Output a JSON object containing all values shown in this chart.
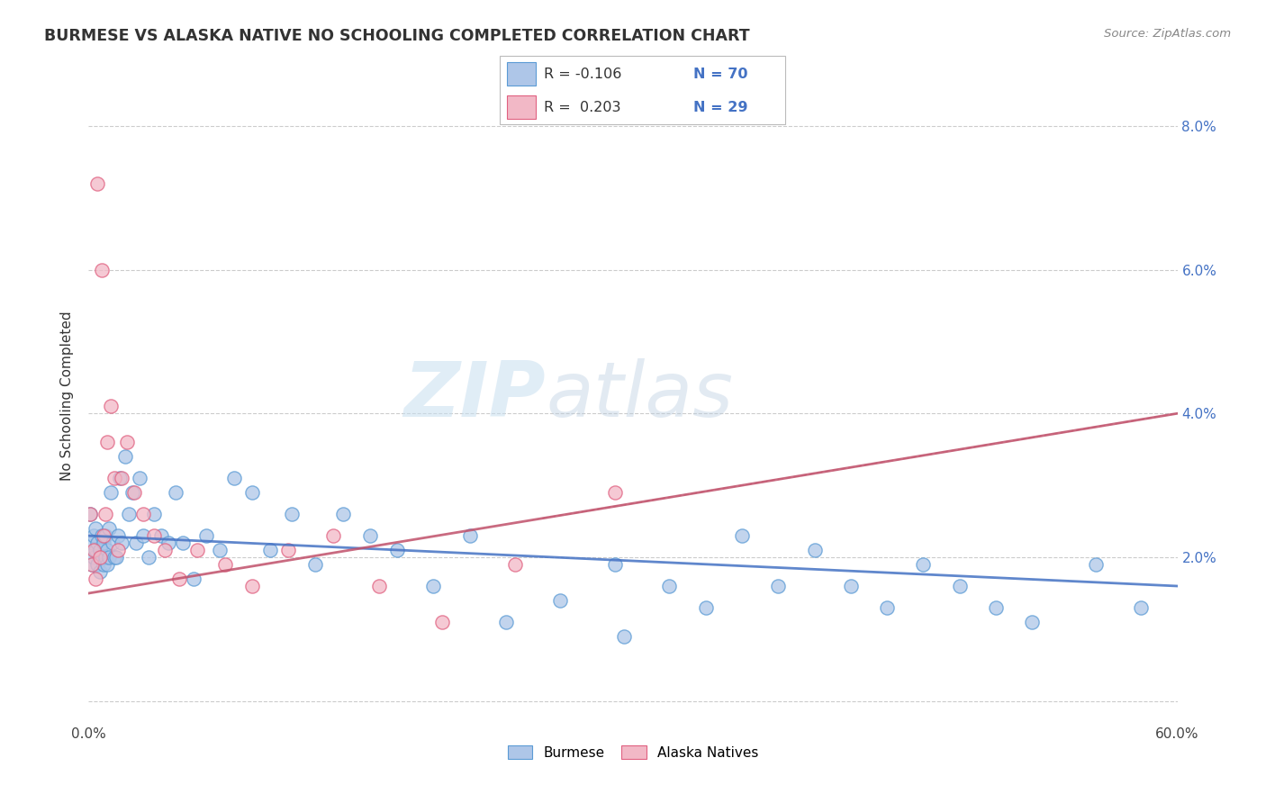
{
  "title": "BURMESE VS ALASKA NATIVE NO SCHOOLING COMPLETED CORRELATION CHART",
  "source": "Source: ZipAtlas.com",
  "ylabel": "No Schooling Completed",
  "watermark_zip": "ZIP",
  "watermark_atlas": "atlas",
  "burmese_color": "#aec6e8",
  "burmese_edge": "#5b9bd5",
  "alaska_color": "#f2b8c6",
  "alaska_edge": "#e06080",
  "burmese_trend_color": "#4472c4",
  "alaska_trend_color": "#c0506a",
  "xmin": 0.0,
  "xmax": 0.6,
  "ymin": -0.003,
  "ymax": 0.088,
  "yticks": [
    0.0,
    0.02,
    0.04,
    0.06,
    0.08
  ],
  "ytick_labels": [
    "",
    "2.0%",
    "4.0%",
    "6.0%",
    "8.0%"
  ],
  "xticks": [
    0.0,
    0.1,
    0.2,
    0.3,
    0.4,
    0.5,
    0.6
  ],
  "xtick_labels": [
    "0.0%",
    "",
    "",
    "",
    "",
    "",
    "60.0%"
  ],
  "burmese_x": [
    0.001,
    0.002,
    0.002,
    0.003,
    0.003,
    0.004,
    0.004,
    0.005,
    0.005,
    0.006,
    0.006,
    0.007,
    0.007,
    0.008,
    0.008,
    0.009,
    0.009,
    0.01,
    0.01,
    0.011,
    0.011,
    0.012,
    0.013,
    0.014,
    0.015,
    0.016,
    0.017,
    0.018,
    0.02,
    0.022,
    0.024,
    0.026,
    0.028,
    0.03,
    0.033,
    0.036,
    0.04,
    0.044,
    0.048,
    0.052,
    0.058,
    0.065,
    0.072,
    0.08,
    0.09,
    0.1,
    0.112,
    0.125,
    0.14,
    0.155,
    0.17,
    0.19,
    0.21,
    0.23,
    0.26,
    0.29,
    0.32,
    0.36,
    0.4,
    0.44,
    0.48,
    0.52,
    0.555,
    0.58,
    0.295,
    0.34,
    0.38,
    0.42,
    0.46,
    0.5
  ],
  "burmese_y": [
    0.026,
    0.022,
    0.019,
    0.023,
    0.02,
    0.021,
    0.024,
    0.022,
    0.019,
    0.021,
    0.018,
    0.023,
    0.02,
    0.019,
    0.022,
    0.02,
    0.023,
    0.021,
    0.019,
    0.024,
    0.02,
    0.029,
    0.022,
    0.02,
    0.02,
    0.023,
    0.031,
    0.022,
    0.034,
    0.026,
    0.029,
    0.022,
    0.031,
    0.023,
    0.02,
    0.026,
    0.023,
    0.022,
    0.029,
    0.022,
    0.017,
    0.023,
    0.021,
    0.031,
    0.029,
    0.021,
    0.026,
    0.019,
    0.026,
    0.023,
    0.021,
    0.016,
    0.023,
    0.011,
    0.014,
    0.019,
    0.016,
    0.023,
    0.021,
    0.013,
    0.016,
    0.011,
    0.019,
    0.013,
    0.009,
    0.013,
    0.016,
    0.016,
    0.019,
    0.013
  ],
  "alaska_x": [
    0.001,
    0.002,
    0.003,
    0.004,
    0.005,
    0.006,
    0.007,
    0.008,
    0.009,
    0.01,
    0.012,
    0.014,
    0.016,
    0.018,
    0.021,
    0.025,
    0.03,
    0.036,
    0.042,
    0.05,
    0.06,
    0.075,
    0.09,
    0.11,
    0.135,
    0.16,
    0.195,
    0.235,
    0.29
  ],
  "alaska_y": [
    0.026,
    0.019,
    0.021,
    0.017,
    0.072,
    0.02,
    0.06,
    0.023,
    0.026,
    0.036,
    0.041,
    0.031,
    0.021,
    0.031,
    0.036,
    0.029,
    0.026,
    0.023,
    0.021,
    0.017,
    0.021,
    0.019,
    0.016,
    0.021,
    0.023,
    0.016,
    0.011,
    0.019,
    0.029
  ],
  "legend_r1": "R = -0.106",
  "legend_n1": "N = 70",
  "legend_r2": "R =  0.203",
  "legend_n2": "N = 29",
  "r_color": "#333333",
  "n_color": "#4472c4",
  "legend_box_color": "#aaaaaa"
}
